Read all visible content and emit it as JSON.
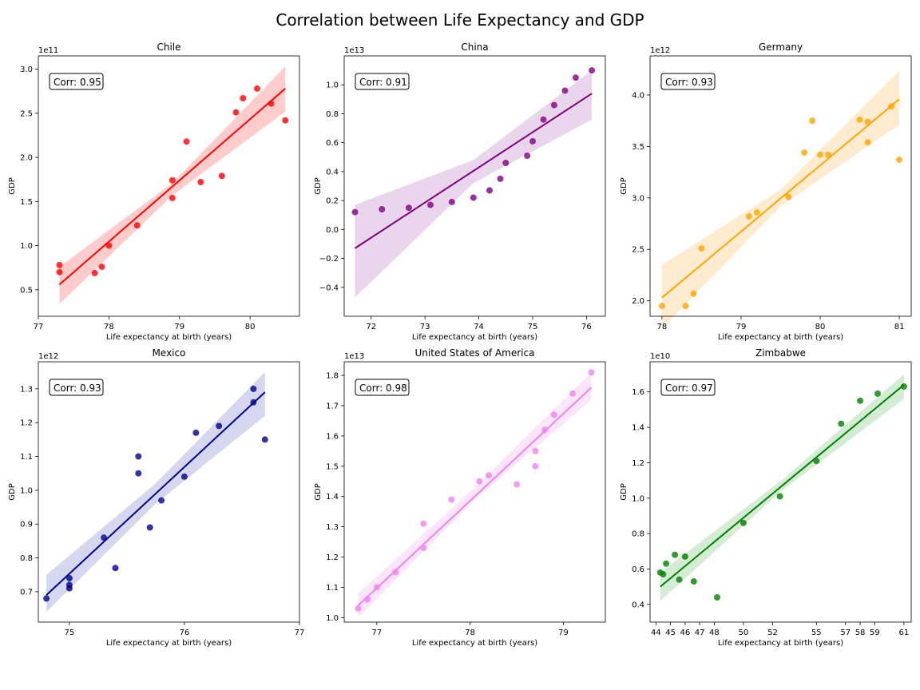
{
  "suptitle": "Correlation between Life Expectancy and GDP",
  "chart_data": [
    {
      "type": "scatter",
      "title": "Chile",
      "xlabel": "Life expectancy at birth (years)",
      "ylabel": "GDP",
      "offset_label": "1e11",
      "annotation": "Corr: 0.95",
      "color": "#ff0000",
      "band_color": "#ffcccc",
      "xlim": [
        77.0,
        80.7
      ],
      "ylim": [
        0.2,
        3.15
      ],
      "xticks": [
        77,
        78,
        79,
        80
      ],
      "yticks": [
        0.5,
        1.0,
        1.5,
        2.0,
        2.5,
        3.0
      ],
      "ytick_labels": [
        "0.5",
        "1.0",
        "1.5",
        "2.0",
        "2.5",
        "3.0"
      ],
      "x": [
        77.3,
        77.3,
        77.8,
        77.9,
        78.0,
        78.4,
        78.9,
        78.9,
        79.1,
        79.3,
        79.6,
        79.8,
        79.9,
        80.1,
        80.3,
        80.5
      ],
      "y": [
        0.78,
        0.7,
        0.69,
        0.76,
        1.0,
        1.23,
        1.54,
        1.74,
        2.18,
        1.72,
        1.79,
        2.51,
        2.67,
        2.78,
        2.61,
        2.42
      ],
      "fit": {
        "x": [
          77.3,
          80.5
        ],
        "y": [
          0.56,
          2.78
        ]
      },
      "band": {
        "x": [
          77.3,
          78.9,
          80.5
        ],
        "lower": [
          0.34,
          1.57,
          2.52
        ],
        "upper": [
          0.76,
          1.71,
          3.03
        ]
      }
    },
    {
      "type": "scatter",
      "title": "China",
      "xlabel": "Life expectancy at birth (years)",
      "ylabel": "GDP",
      "offset_label": "1e13",
      "annotation": "Corr: 0.91",
      "color": "#800080",
      "band_color": "#e9d6ec",
      "xlim": [
        71.5,
        76.35
      ],
      "ylim": [
        -0.6,
        1.2
      ],
      "xticks": [
        72,
        73,
        74,
        75,
        76
      ],
      "yticks": [
        -0.4,
        -0.2,
        0.0,
        0.2,
        0.4,
        0.6,
        0.8,
        1.0
      ],
      "ytick_labels": [
        "−0.4",
        "−0.2",
        "0.0",
        "0.2",
        "0.4",
        "0.6",
        "0.8",
        "1.0"
      ],
      "x": [
        71.7,
        72.2,
        72.7,
        73.1,
        73.5,
        73.9,
        74.2,
        74.4,
        74.5,
        74.9,
        75.0,
        75.2,
        75.4,
        75.6,
        75.8,
        76.1
      ],
      "y": [
        0.12,
        0.14,
        0.15,
        0.17,
        0.19,
        0.22,
        0.27,
        0.35,
        0.46,
        0.51,
        0.61,
        0.76,
        0.86,
        0.96,
        1.05,
        1.1
      ],
      "fit": {
        "x": [
          71.7,
          76.1
        ],
        "y": [
          -0.13,
          0.94
        ]
      },
      "band": {
        "x": [
          71.7,
          73.9,
          76.1
        ],
        "lower": [
          -0.47,
          0.32,
          0.76
        ],
        "upper": [
          0.17,
          0.48,
          1.1
        ]
      }
    },
    {
      "type": "scatter",
      "title": "Germany",
      "xlabel": "Life expectancy at birth (years)",
      "ylabel": "GDP",
      "offset_label": "1e12",
      "annotation": "Corr: 0.93",
      "color": "#ffa500",
      "band_color": "#ffecd0",
      "xlim": [
        77.85,
        81.15
      ],
      "ylim": [
        1.85,
        4.38
      ],
      "xticks": [
        78,
        79,
        80,
        81
      ],
      "yticks": [
        2.0,
        2.5,
        3.0,
        3.5,
        4.0
      ],
      "ytick_labels": [
        "2.0",
        "2.5",
        "3.0",
        "3.5",
        "4.0"
      ],
      "x": [
        78.0,
        78.3,
        78.4,
        78.5,
        79.1,
        79.2,
        79.6,
        79.8,
        79.9,
        80.0,
        80.1,
        80.5,
        80.6,
        80.6,
        80.9,
        81.0
      ],
      "y": [
        1.95,
        1.95,
        2.07,
        2.51,
        2.82,
        2.86,
        3.01,
        3.44,
        3.75,
        3.42,
        3.42,
        3.76,
        3.74,
        3.54,
        3.89,
        3.37
      ],
      "fit": {
        "x": [
          78.0,
          81.0
        ],
        "y": [
          2.03,
          3.96
        ]
      },
      "band": {
        "x": [
          78.0,
          79.5,
          81.0
        ],
        "lower": [
          1.73,
          2.92,
          3.71
        ],
        "upper": [
          2.35,
          3.08,
          4.24
        ]
      }
    },
    {
      "type": "scatter",
      "title": "Mexico",
      "xlabel": "Life expectancy at birth (years)",
      "ylabel": "GDP",
      "offset_label": "1e12",
      "annotation": "Corr: 0.93",
      "color": "#00008b",
      "band_color": "#d5d7ee",
      "xlim": [
        74.73,
        77.0
      ],
      "ylim": [
        0.61,
        1.38
      ],
      "xticks": [
        75,
        76,
        77
      ],
      "yticks": [
        0.7,
        0.8,
        0.9,
        1.0,
        1.1,
        1.2,
        1.3
      ],
      "ytick_labels": [
        "0.7",
        "0.8",
        "0.9",
        "1.0",
        "1.1",
        "1.2",
        "1.3"
      ],
      "x": [
        74.8,
        75.0,
        75.0,
        75.0,
        75.3,
        75.4,
        75.6,
        75.6,
        75.7,
        75.8,
        76.0,
        76.1,
        76.3,
        76.6,
        76.6,
        76.7
      ],
      "y": [
        0.68,
        0.74,
        0.72,
        0.71,
        0.86,
        0.77,
        1.1,
        1.05,
        0.89,
        0.97,
        1.04,
        1.17,
        1.19,
        1.3,
        1.26,
        1.15
      ],
      "fit": {
        "x": [
          74.8,
          76.7
        ],
        "y": [
          0.69,
          1.29
        ]
      },
      "band": {
        "x": [
          74.8,
          75.75,
          76.7
        ],
        "lower": [
          0.64,
          0.96,
          1.22
        ],
        "upper": [
          0.75,
          1.02,
          1.35
        ]
      }
    },
    {
      "type": "scatter",
      "title": "United States of America",
      "xlabel": "Life expectancy at birth (years)",
      "ylabel": "GDP",
      "offset_label": "1e13",
      "annotation": "Corr: 0.98",
      "color": "#ee82ee",
      "band_color": "#fbe5fb",
      "xlim": [
        76.65,
        79.45
      ],
      "ylim": [
        0.985,
        1.845
      ],
      "xticks": [
        77,
        78,
        79
      ],
      "yticks": [
        1.0,
        1.1,
        1.2,
        1.3,
        1.4,
        1.5,
        1.6,
        1.7,
        1.8
      ],
      "ytick_labels": [
        "1.0",
        "1.1",
        "1.2",
        "1.3",
        "1.4",
        "1.5",
        "1.6",
        "1.7",
        "1.8"
      ],
      "x": [
        76.8,
        76.9,
        77.0,
        77.2,
        77.5,
        77.5,
        77.8,
        78.1,
        78.2,
        78.5,
        78.7,
        78.7,
        78.8,
        78.9,
        79.1,
        79.3
      ],
      "y": [
        1.03,
        1.06,
        1.1,
        1.15,
        1.23,
        1.31,
        1.39,
        1.45,
        1.47,
        1.44,
        1.5,
        1.55,
        1.62,
        1.67,
        1.74,
        1.81
      ],
      "fit": {
        "x": [
          76.8,
          79.3
        ],
        "y": [
          1.04,
          1.76
        ]
      },
      "band": {
        "x": [
          76.8,
          78.05,
          79.3
        ],
        "lower": [
          1.0,
          1.39,
          1.72
        ],
        "upper": [
          1.08,
          1.43,
          1.81
        ]
      }
    },
    {
      "type": "scatter",
      "title": "Zimbabwe",
      "xlabel": "Life expectancy at birth (years)",
      "ylabel": "GDP",
      "offset_label": "1e10",
      "annotation": "Corr: 0.97",
      "color": "#008000",
      "band_color": "#d4ebd4",
      "xlim": [
        43.6,
        61.5
      ],
      "ylim": [
        0.3,
        1.77
      ],
      "xticks": [
        44,
        45,
        46,
        47,
        48,
        50,
        52,
        55,
        57,
        58,
        59,
        61
      ],
      "yticks": [
        0.4,
        0.6,
        0.8,
        1.0,
        1.2,
        1.4,
        1.6
      ],
      "ytick_labels": [
        "0.4",
        "0.6",
        "0.8",
        "1.0",
        "1.2",
        "1.4",
        "1.6"
      ],
      "x": [
        44.3,
        44.5,
        44.7,
        45.3,
        45.6,
        46.0,
        46.6,
        48.2,
        50.0,
        52.5,
        55.0,
        56.7,
        58.0,
        59.2,
        61.0
      ],
      "y": [
        0.58,
        0.57,
        0.63,
        0.68,
        0.54,
        0.67,
        0.53,
        0.44,
        0.86,
        1.01,
        1.21,
        1.42,
        1.55,
        1.59,
        1.63
      ],
      "fit": {
        "x": [
          44.3,
          61.0
        ],
        "y": [
          0.5,
          1.64
        ]
      },
      "band": {
        "x": [
          44.3,
          52.6,
          61.0
        ],
        "lower": [
          0.42,
          1.04,
          1.56
        ],
        "upper": [
          0.58,
          1.1,
          1.7
        ]
      }
    }
  ]
}
